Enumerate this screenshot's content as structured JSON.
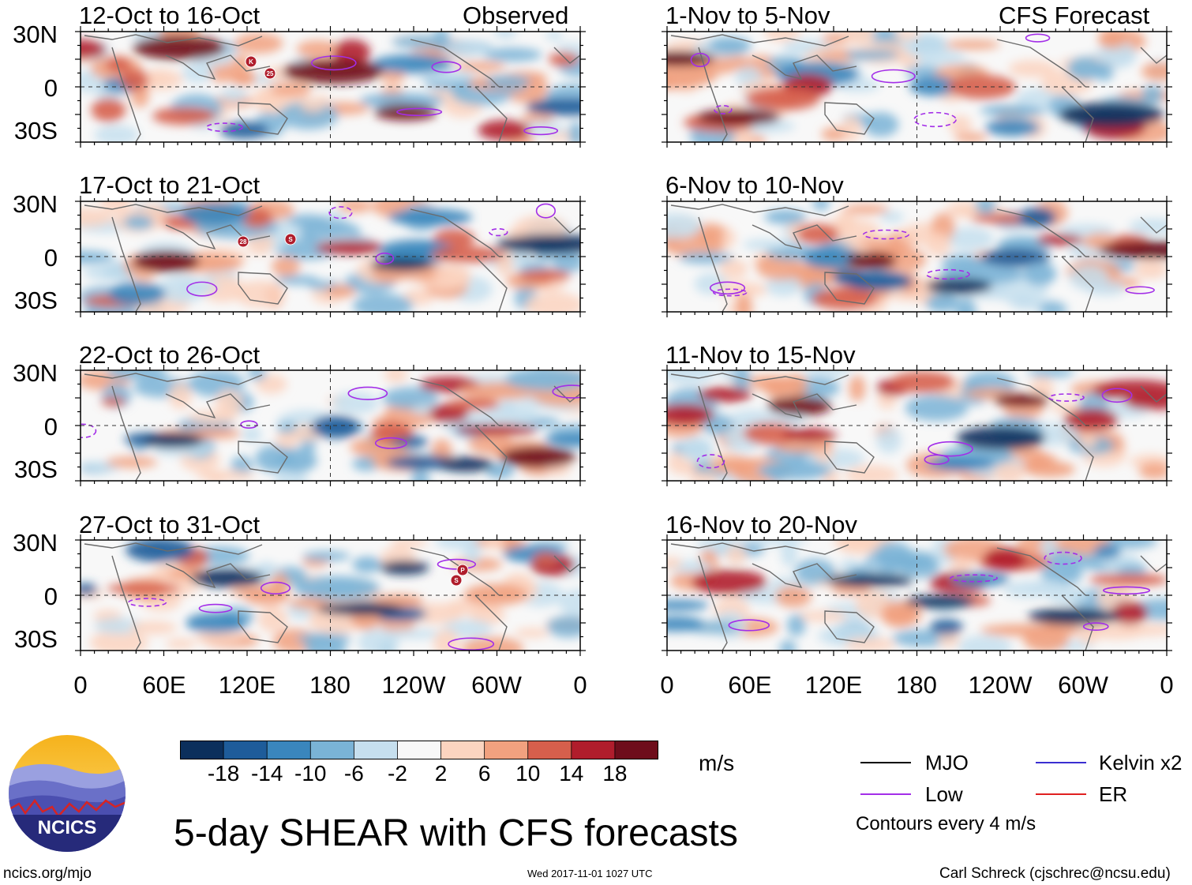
{
  "header": {
    "observed_tag": "Observed",
    "forecast_tag": "CFS Forecast"
  },
  "panels": {
    "observed": [
      {
        "title": "12-Oct to 16-Oct"
      },
      {
        "title": "17-Oct to 21-Oct"
      },
      {
        "title": "22-Oct to 26-Oct"
      },
      {
        "title": "27-Oct to 31-Oct"
      }
    ],
    "forecast": [
      {
        "title": "1-Nov to 5-Nov"
      },
      {
        "title": "6-Nov to 10-Nov"
      },
      {
        "title": "11-Nov to 15-Nov"
      },
      {
        "title": "16-Nov to 20-Nov"
      }
    ]
  },
  "axes": {
    "lat_labels": [
      "30N",
      "0",
      "30S"
    ],
    "lon_labels": [
      "0",
      "60E",
      "120E",
      "180",
      "120W",
      "60W",
      "0"
    ]
  },
  "storm_markers": [
    {
      "label": "K",
      "panel": 0
    },
    {
      "label": "25",
      "panel": 0
    },
    {
      "label": "28",
      "panel": 1
    },
    {
      "label": "S",
      "panel": 1
    },
    {
      "label": "P",
      "panel": 3
    },
    {
      "label": "S",
      "panel": 3
    }
  ],
  "colorbar": {
    "labels": [
      "-18",
      "-14",
      "-10",
      "-6",
      "-2",
      "2",
      "6",
      "10",
      "14",
      "18"
    ],
    "colors": [
      "#0b2f5c",
      "#1e5c9a",
      "#3a86bd",
      "#7ab3d6",
      "#c6dfee",
      "#f8f8f8",
      "#fbd4c0",
      "#f1a17f",
      "#d65f4c",
      "#b01d2c",
      "#6e0d1b"
    ],
    "units": "m/s"
  },
  "legend": {
    "items": [
      {
        "label": "MJO",
        "color": "#000000"
      },
      {
        "label": "Kelvin x2",
        "color": "#3b2fd1"
      },
      {
        "label": "Low",
        "color": "#a32ee8"
      },
      {
        "label": "ER",
        "color": "#e02020"
      }
    ],
    "contour_note": "Contours every 4 m/s"
  },
  "title": "5-day SHEAR with CFS forecasts",
  "logo_text": "NCICS",
  "footer": {
    "url": "ncics.org/mjo",
    "timestamp": "Wed 2017-11-01 1027 UTC",
    "author": "Carl Schreck (cjschrec@ncsu.edu)"
  }
}
